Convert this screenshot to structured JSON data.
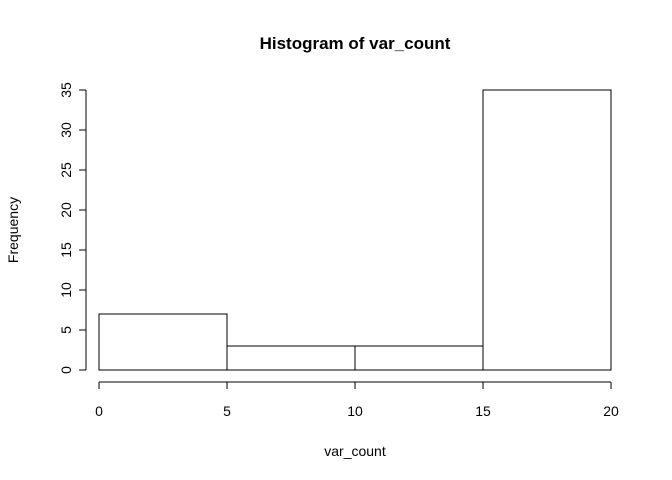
{
  "chart_data": {
    "type": "bar",
    "title": "Histogram of var_count",
    "xlabel": "var_count",
    "ylabel": "Frequency",
    "bins": [
      {
        "from": 0,
        "to": 5,
        "count": 7
      },
      {
        "from": 5,
        "to": 10,
        "count": 3
      },
      {
        "from": 10,
        "to": 15,
        "count": 3
      },
      {
        "from": 15,
        "to": 20,
        "count": 35
      }
    ],
    "xlim": [
      0,
      20
    ],
    "ylim": [
      0,
      35
    ],
    "x_ticks": [
      0,
      5,
      10,
      15,
      20
    ],
    "y_ticks": [
      0,
      5,
      10,
      15,
      20,
      25,
      30,
      35
    ],
    "x_tick_labels": [
      "0",
      "5",
      "10",
      "15",
      "20"
    ],
    "y_tick_labels": [
      "0",
      "5",
      "10",
      "15",
      "20",
      "25",
      "30",
      "35"
    ],
    "bar_fill": "#ffffff",
    "bar_stroke": "#000000",
    "grid": false
  }
}
